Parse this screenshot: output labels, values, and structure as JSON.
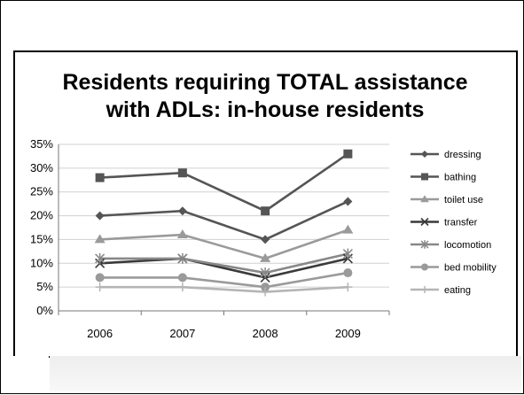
{
  "chart_data": {
    "type": "line",
    "title_line1": "Residents requiring TOTAL assistance",
    "title_line2": "with ADLs: in-house residents",
    "x": [
      "2006",
      "2007",
      "2008",
      "2009"
    ],
    "y_ticks": [
      "0%",
      "5%",
      "10%",
      "15%",
      "20%",
      "25%",
      "30%",
      "35%"
    ],
    "ylim": [
      0,
      35
    ],
    "legend_position": "right",
    "grid": "horizontal",
    "series": [
      {
        "name": "dressing",
        "values": [
          20,
          21,
          15,
          23
        ],
        "color": "#555555",
        "marker": "diamond"
      },
      {
        "name": "bathing",
        "values": [
          28,
          29,
          21,
          33
        ],
        "color": "#555555",
        "marker": "square"
      },
      {
        "name": "toilet use",
        "values": [
          15,
          16,
          11,
          17
        ],
        "color": "#9a9a9a",
        "marker": "triangle"
      },
      {
        "name": "transfer",
        "values": [
          10,
          11,
          7,
          11
        ],
        "color": "#3a3a3a",
        "marker": "x"
      },
      {
        "name": "locomotion",
        "values": [
          11,
          11,
          8,
          12
        ],
        "color": "#888888",
        "marker": "star"
      },
      {
        "name": "bed mobility",
        "values": [
          7,
          7,
          5,
          8
        ],
        "color": "#9a9a9a",
        "marker": "circle"
      },
      {
        "name": "eating",
        "values": [
          5,
          5,
          4,
          5
        ],
        "color": "#b5b5b5",
        "marker": "plus"
      }
    ]
  }
}
